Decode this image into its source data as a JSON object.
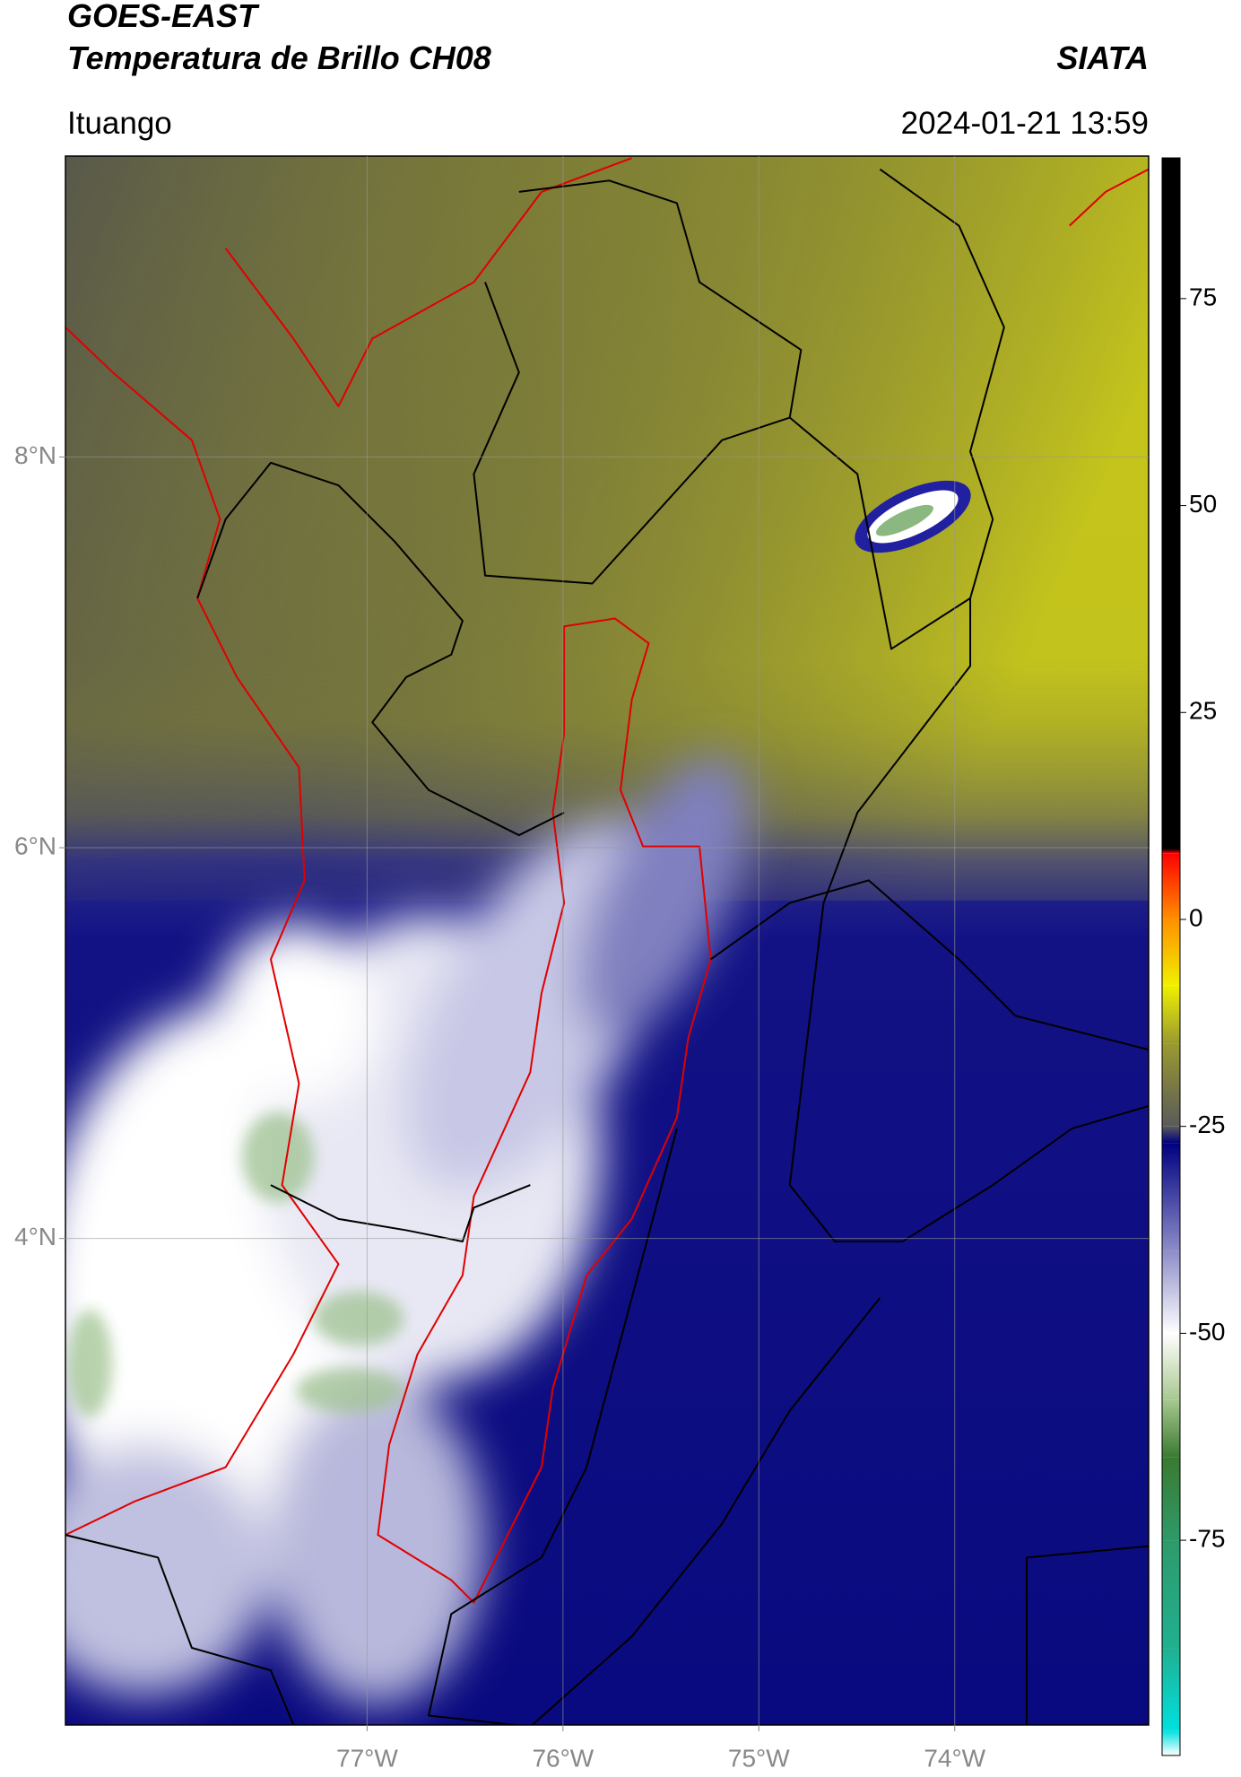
{
  "header": {
    "satellite": "GOES-EAST",
    "product": "Temperatura de Brillo CH08",
    "agency": "SIATA",
    "location": "Ituango",
    "datetime": "2024-01-21 13:59"
  },
  "map": {
    "xlim": [
      -78.54,
      -73.01
    ],
    "ylim": [
      1.51,
      9.54
    ],
    "xticks": [
      {
        "value": -77,
        "label": "77°W"
      },
      {
        "value": -76,
        "label": "76°W"
      },
      {
        "value": -75,
        "label": "75°W"
      },
      {
        "value": -74,
        "label": "74°W"
      }
    ],
    "yticks": [
      {
        "value": 8,
        "label": "8°N"
      },
      {
        "value": 6,
        "label": "6°N"
      },
      {
        "value": 4,
        "label": "4°N"
      }
    ],
    "grid": true
  },
  "colorbar": {
    "lim": [
      -101,
      92
    ],
    "ticks": [
      75,
      50,
      25,
      0,
      -25,
      -50,
      -75
    ],
    "stops": [
      {
        "value": -101,
        "color": "#ffffff"
      },
      {
        "value": -98,
        "color": "#00e0e0"
      },
      {
        "value": -88,
        "color": "#20b090"
      },
      {
        "value": -75,
        "color": "#2e9a6a"
      },
      {
        "value": -65,
        "color": "#3a7a30"
      },
      {
        "value": -58,
        "color": "#a8c890"
      },
      {
        "value": -50,
        "color": "#ffffff"
      },
      {
        "value": -40,
        "color": "#8c8cc8"
      },
      {
        "value": -27,
        "color": "#000080"
      },
      {
        "value": -25,
        "color": "#5a5a5a"
      },
      {
        "value": -15,
        "color": "#9a9a30"
      },
      {
        "value": -8,
        "color": "#f0f000"
      },
      {
        "value": 0,
        "color": "#ff9000"
      },
      {
        "value": 8,
        "color": "#ff0000"
      },
      {
        "value": 8.5,
        "color": "#000000"
      },
      {
        "value": 92,
        "color": "#000000"
      }
    ]
  }
}
